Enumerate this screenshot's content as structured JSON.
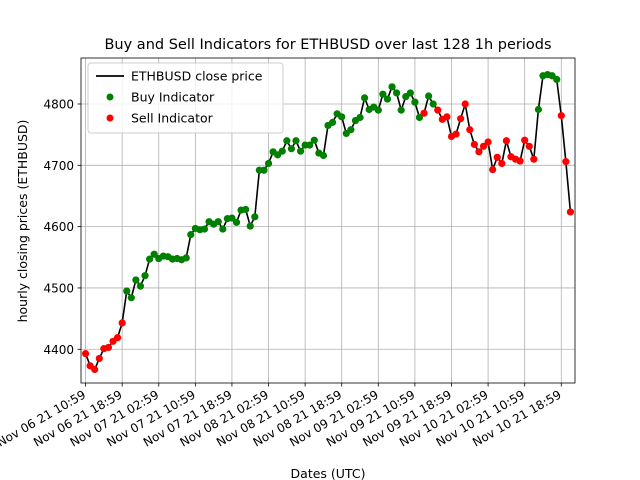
{
  "chart_data": {
    "type": "line",
    "title": "Buy and Sell Indicators for ETHBUSD over last 128 1h periods",
    "xlabel": "Dates (UTC)",
    "ylabel": "hourly closing prices (ETHBUSD)",
    "x_start": "Nov 06 21 10:59",
    "x_interval_hours": 1,
    "x_tick_labels": [
      "Nov 06 21 10:59",
      "Nov 06 21 18:59",
      "Nov 07 21 02:59",
      "Nov 07 21 10:59",
      "Nov 07 21 18:59",
      "Nov 08 21 02:59",
      "Nov 08 21 10:59",
      "Nov 08 21 18:59",
      "Nov 09 21 02:59",
      "Nov 09 21 10:59",
      "Nov 09 21 18:59",
      "Nov 10 21 02:59",
      "Nov 10 21 10:59",
      "Nov 10 21 18:59"
    ],
    "y_ticks": [
      4400,
      4500,
      4600,
      4700,
      4800
    ],
    "ylim": [
      4345,
      4875
    ],
    "grid": true,
    "legend_position": "top-left",
    "colors": {
      "line": "#000000",
      "buy": "#008000",
      "sell": "#ff0000"
    },
    "series": [
      {
        "name": "ETHBUSD close price",
        "kind": "line"
      },
      {
        "name": "Buy Indicator",
        "kind": "marker"
      },
      {
        "name": "Sell Indicator",
        "kind": "marker"
      }
    ],
    "close_prices": [
      4393,
      4373,
      4367,
      4385,
      4401,
      4403,
      4413,
      4419,
      4443,
      4495,
      4484,
      4513,
      4503,
      4520,
      4547,
      4555,
      4548,
      4552,
      4551,
      4547,
      4548,
      4546,
      4549,
      4587,
      4597,
      4595,
      4596,
      4608,
      4604,
      4608,
      4596,
      4613,
      4614,
      4607,
      4627,
      4628,
      4601,
      4616,
      4692,
      4692,
      4703,
      4722,
      4717,
      4723,
      4740,
      4727,
      4740,
      4723,
      4733,
      4733,
      4741,
      4720,
      4716,
      4765,
      4770,
      4784,
      4779,
      4752,
      4758,
      4773,
      4778,
      4810,
      4791,
      4795,
      4790,
      4816,
      4808,
      4828,
      4818,
      4790,
      4812,
      4818,
      4803,
      4778,
      4785,
      4813,
      4800,
      4790,
      4775,
      4779,
      4747,
      4751,
      4776,
      4800,
      4758,
      4734,
      4722,
      4731,
      4738,
      4693,
      4713,
      4703,
      4740,
      4714,
      4710,
      4707,
      4741,
      4731,
      4710,
      4791,
      4846,
      4848,
      4846,
      4840,
      4781,
      4706,
      4624
    ],
    "signals": [
      "sell",
      "sell",
      "sell",
      "sell",
      "sell",
      "sell",
      "sell",
      "sell",
      "sell",
      "buy",
      "buy",
      "buy",
      "buy",
      "buy",
      "buy",
      "buy",
      "buy",
      "buy",
      "buy",
      "buy",
      "buy",
      "buy",
      "buy",
      "buy",
      "buy",
      "buy",
      "buy",
      "buy",
      "buy",
      "buy",
      "buy",
      "buy",
      "buy",
      "buy",
      "buy",
      "buy",
      "buy",
      "buy",
      "buy",
      "buy",
      "buy",
      "buy",
      "buy",
      "buy",
      "buy",
      "buy",
      "buy",
      "buy",
      "buy",
      "buy",
      "buy",
      "buy",
      "buy",
      "buy",
      "buy",
      "buy",
      "buy",
      "buy",
      "buy",
      "buy",
      "buy",
      "buy",
      "buy",
      "buy",
      "buy",
      "buy",
      "buy",
      "buy",
      "buy",
      "buy",
      "buy",
      "buy",
      "buy",
      "buy",
      "sell",
      "buy",
      "buy",
      "sell",
      "sell",
      "sell",
      "sell",
      "sell",
      "sell",
      "sell",
      "sell",
      "sell",
      "sell",
      "sell",
      "sell",
      "sell",
      "sell",
      "sell",
      "sell",
      "sell",
      "sell",
      "sell",
      "sell",
      "sell",
      "sell",
      "buy",
      "buy",
      "buy",
      "buy",
      "buy",
      "sell",
      "sell",
      "sell"
    ]
  }
}
